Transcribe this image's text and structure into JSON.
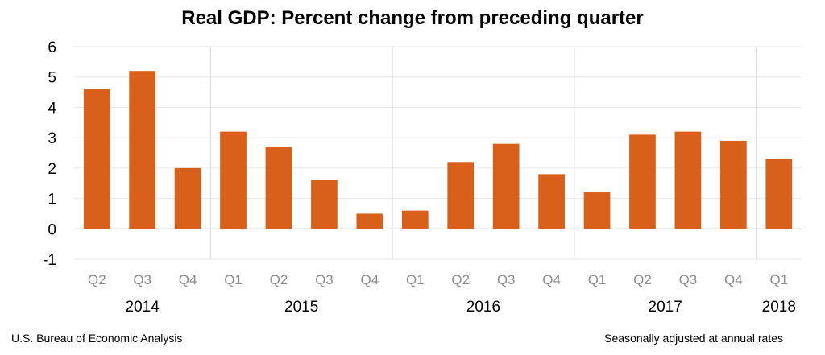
{
  "chart_data": {
    "type": "bar",
    "title": "Real GDP:  Percent change from preceding quarter",
    "categories": [
      "Q2",
      "Q3",
      "Q4",
      "Q1",
      "Q2",
      "Q3",
      "Q4",
      "Q1",
      "Q2",
      "Q3",
      "Q4",
      "Q1",
      "Q2",
      "Q3",
      "Q4",
      "Q1"
    ],
    "years": [
      {
        "label": "2014",
        "quarters": [
          "Q2",
          "Q3",
          "Q4"
        ]
      },
      {
        "label": "2015",
        "quarters": [
          "Q1",
          "Q2",
          "Q3",
          "Q4"
        ]
      },
      {
        "label": "2016",
        "quarters": [
          "Q1",
          "Q2",
          "Q3",
          "Q4"
        ]
      },
      {
        "label": "2017",
        "quarters": [
          "Q1",
          "Q2",
          "Q3",
          "Q4"
        ]
      },
      {
        "label": "2018",
        "quarters": [
          "Q1"
        ]
      }
    ],
    "values": [
      4.6,
      5.2,
      2.0,
      3.2,
      2.7,
      1.6,
      0.5,
      0.6,
      2.2,
      2.8,
      1.8,
      1.2,
      3.1,
      3.2,
      2.9,
      2.3
    ],
    "ylim": [
      -1,
      6
    ],
    "yticks": [
      "-1",
      "0",
      "1",
      "2",
      "3",
      "4",
      "5",
      "6"
    ],
    "xlabel": "",
    "ylabel": "",
    "grid": true,
    "bar_color": "#D9601A"
  },
  "footer": {
    "source": "U.S. Bureau of Economic Analysis",
    "note": "Seasonally adjusted at annual rates"
  }
}
